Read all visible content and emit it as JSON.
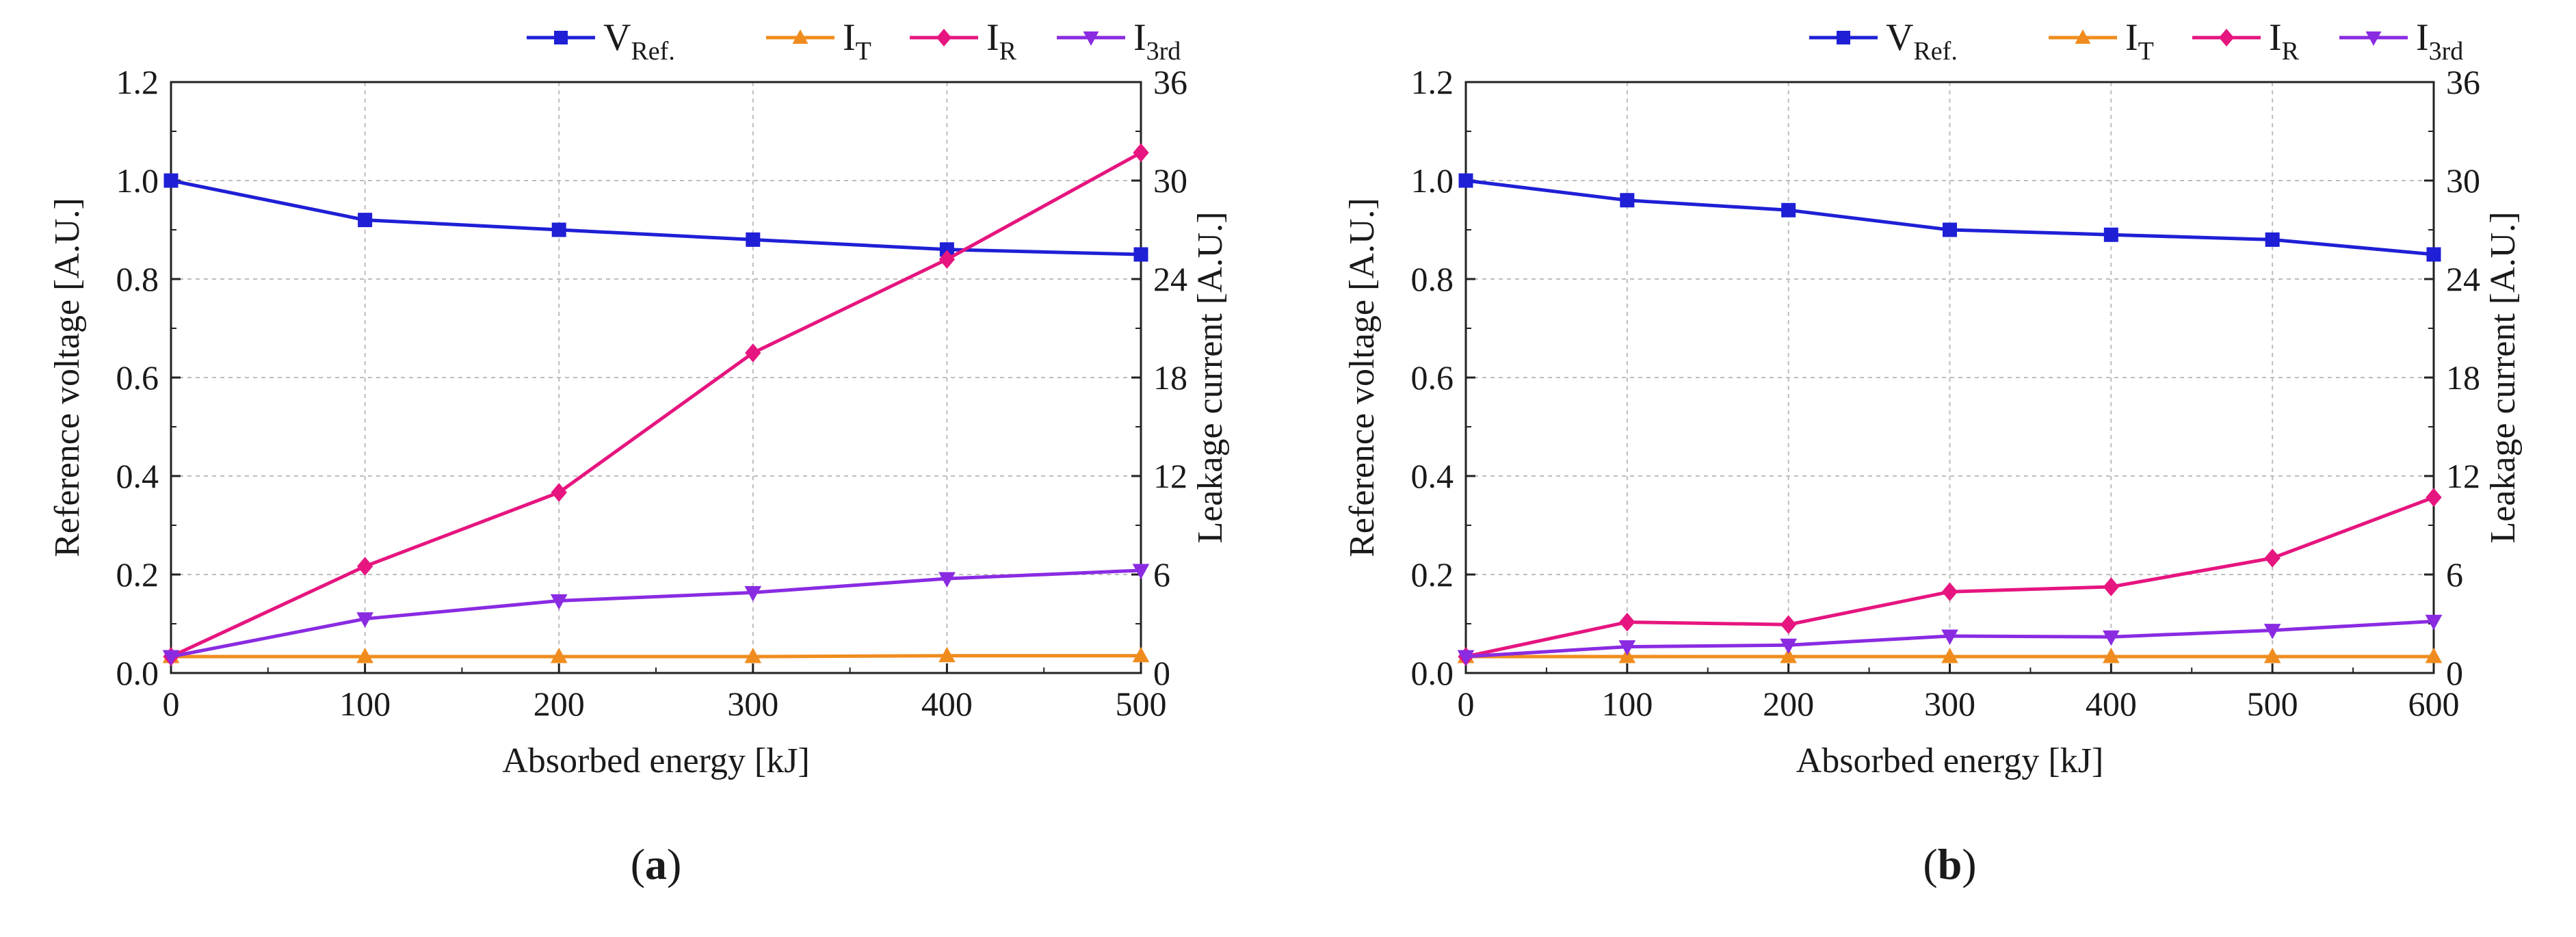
{
  "chart_data": [
    {
      "type": "line",
      "panel_label": "(a)",
      "panel_letter": "a",
      "x": [
        0,
        100,
        200,
        300,
        400,
        500
      ],
      "xlim": [
        0,
        500
      ],
      "xticks": [
        "0",
        "100",
        "200",
        "300",
        "400",
        "500"
      ],
      "xlabel": "Absorbed energy [kJ]",
      "ylabel_left": "Reference voltage [A.U.]",
      "ylim_left": [
        0,
        1.2
      ],
      "yticks_left": [
        "0.0",
        "0.2",
        "0.4",
        "0.6",
        "0.8",
        "1.0",
        "1.2"
      ],
      "ylabel_right": "Leakage current [A.U.]",
      "ylim_right": [
        0,
        36
      ],
      "yticks_right": [
        "0",
        "6",
        "12",
        "18",
        "24",
        "30",
        "36"
      ],
      "grid": true,
      "legend_position": "top",
      "series": [
        {
          "name": "V",
          "sub": "Ref.",
          "axis": "left",
          "color": "#1f1fd6",
          "marker": "square",
          "values": [
            1.0,
            0.92,
            0.9,
            0.88,
            0.86,
            0.85
          ]
        },
        {
          "name": "I",
          "sub": "T",
          "axis": "right",
          "color": "#f08c1e",
          "marker": "triangle-up",
          "values": [
            1.0,
            1.0,
            1.0,
            1.0,
            1.05,
            1.05
          ]
        },
        {
          "name": "I",
          "sub": "R",
          "axis": "right",
          "color": "#e6157f",
          "marker": "diamond",
          "values": [
            1.0,
            6.5,
            11.0,
            19.5,
            25.2,
            31.7
          ]
        },
        {
          "name": "I",
          "sub": "3rd",
          "axis": "right",
          "color": "#8a2be2",
          "marker": "triangle-down",
          "values": [
            1.0,
            3.3,
            4.4,
            4.9,
            5.75,
            6.25
          ]
        }
      ]
    },
    {
      "type": "line",
      "panel_label": "(b)",
      "panel_letter": "b",
      "x": [
        0,
        100,
        200,
        300,
        400,
        500,
        600
      ],
      "xlim": [
        0,
        600
      ],
      "xticks": [
        "0",
        "100",
        "200",
        "300",
        "400",
        "500",
        "600"
      ],
      "xlabel": "Absorbed energy [kJ]",
      "ylabel_left": "Reference voltage [A.U.]",
      "ylim_left": [
        0,
        1.2
      ],
      "yticks_left": [
        "0.0",
        "0.2",
        "0.4",
        "0.6",
        "0.8",
        "1.0",
        "1.2"
      ],
      "ylabel_right": "Leakage current [A.U.]",
      "ylim_right": [
        0,
        36
      ],
      "yticks_right": [
        "0",
        "6",
        "12",
        "18",
        "24",
        "30",
        "36"
      ],
      "grid": true,
      "legend_position": "top",
      "series": [
        {
          "name": "V",
          "sub": "Ref.",
          "axis": "left",
          "color": "#1f1fd6",
          "marker": "square",
          "values": [
            1.0,
            0.96,
            0.94,
            0.9,
            0.89,
            0.88,
            0.85
          ]
        },
        {
          "name": "I",
          "sub": "T",
          "axis": "right",
          "color": "#f08c1e",
          "marker": "triangle-up",
          "values": [
            1.0,
            1.0,
            1.0,
            1.0,
            1.0,
            1.0,
            1.0
          ]
        },
        {
          "name": "I",
          "sub": "R",
          "axis": "right",
          "color": "#e6157f",
          "marker": "diamond",
          "values": [
            1.0,
            3.1,
            2.95,
            4.95,
            5.25,
            7.0,
            10.7
          ]
        },
        {
          "name": "I",
          "sub": "3rd",
          "axis": "right",
          "color": "#8a2be2",
          "marker": "triangle-down",
          "values": [
            1.0,
            1.6,
            1.7,
            2.25,
            2.2,
            2.6,
            3.15
          ]
        }
      ]
    }
  ]
}
